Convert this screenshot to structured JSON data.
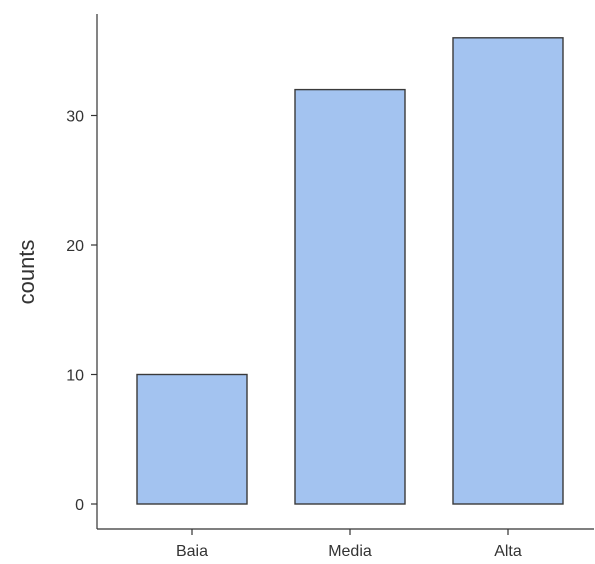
{
  "chart_data": {
    "type": "bar",
    "title": "",
    "xlabel": "",
    "ylabel": "counts",
    "categories": [
      "Baia",
      "Media",
      "Alta"
    ],
    "values": [
      10,
      32,
      36
    ],
    "ylim": [
      0,
      38
    ],
    "yticks": [
      0,
      10,
      20,
      30
    ],
    "grid": false,
    "legend": "none",
    "bar_fill": "#a3c3f0",
    "bar_stroke": "#3a3a3a",
    "axis_color": "#333333"
  }
}
